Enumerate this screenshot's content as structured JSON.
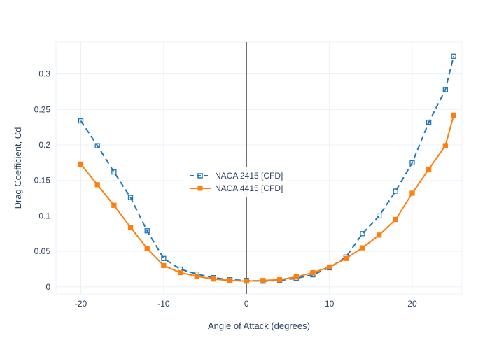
{
  "chart": {
    "type": "line",
    "x_axis_label": "Angle of Attack (degrees)",
    "y_axis_label": "Drag Coefficient, Cd",
    "xlim": [
      -23,
      26
    ],
    "ylim": [
      -0.01,
      0.345
    ],
    "x_ticks": [
      -20,
      -10,
      0,
      10,
      20
    ],
    "y_ticks": [
      0,
      0.05,
      0.1,
      0.15,
      0.2,
      0.25,
      0.3
    ],
    "background_color": "#ffffff",
    "grid_color": "#ebf0f8",
    "zero_line_x_at": 0,
    "zero_line_color": "#444444",
    "label_fontsize": 13,
    "tick_fontsize": 12,
    "label_color": "#2a3f5f",
    "series": [
      {
        "name": "NACA 2415 [CFD]",
        "color": "#1f77b4",
        "line_style": "dashed",
        "dash_pattern": "8,5",
        "line_width": 2,
        "marker": "square-open",
        "marker_size": 6,
        "marker_fill": "none",
        "x": [
          -20,
          -18,
          -16,
          -14,
          -12,
          -10,
          -8,
          -6,
          -4,
          -2,
          0,
          2,
          4,
          6,
          8,
          10,
          12,
          14,
          16,
          18,
          20,
          22,
          24,
          25
        ],
        "y": [
          0.234,
          0.199,
          0.162,
          0.126,
          0.079,
          0.04,
          0.025,
          0.018,
          0.013,
          0.01,
          0.009,
          0.008,
          0.009,
          0.012,
          0.017,
          0.027,
          0.042,
          0.075,
          0.1,
          0.135,
          0.175,
          0.232,
          0.278,
          0.325
        ]
      },
      {
        "name": "NACA 4415 [CFD]",
        "color": "#ff7f0e",
        "line_style": "solid",
        "dash_pattern": "",
        "line_width": 2,
        "marker": "square",
        "marker_size": 6,
        "marker_fill": "#ff7f0e",
        "x": [
          -20,
          -18,
          -16,
          -14,
          -12,
          -10,
          -8,
          -6,
          -4,
          -2,
          0,
          2,
          4,
          6,
          8,
          10,
          12,
          14,
          16,
          18,
          20,
          22,
          24,
          25
        ],
        "y": [
          0.173,
          0.144,
          0.115,
          0.084,
          0.054,
          0.03,
          0.02,
          0.015,
          0.011,
          0.009,
          0.008,
          0.009,
          0.01,
          0.014,
          0.02,
          0.028,
          0.04,
          0.055,
          0.073,
          0.095,
          0.132,
          0.166,
          0.199,
          0.242
        ]
      }
    ],
    "legend": {
      "position": "inside-center",
      "items": [
        {
          "label": "NACA 2415 [CFD]"
        },
        {
          "label": "NACA 4415 [CFD]"
        }
      ]
    }
  }
}
